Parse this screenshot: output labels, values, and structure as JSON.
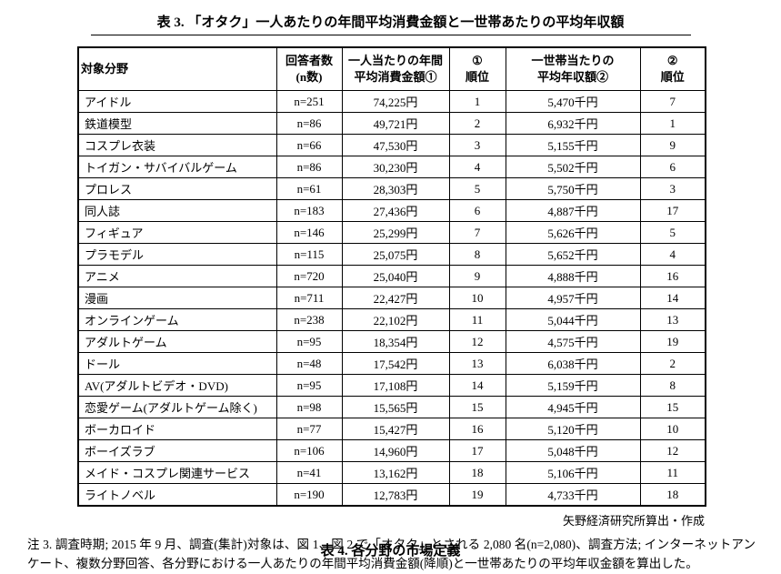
{
  "title": "表 3. 「オタク」一人あたりの年間平均消費金額と一世帯あたりの平均年収額",
  "table": {
    "col_keys": [
      "field",
      "respondents",
      "spend",
      "rank-spend",
      "income",
      "rank-income"
    ],
    "headers": [
      "対象分野",
      "回答者数\n(n数)",
      "一人当たりの年間\n平均消費金額①",
      "①\n順位",
      "一世帯当たりの\n平均年収額②",
      "②\n順位"
    ],
    "rows": [
      [
        "アイドル",
        "n=251",
        "74,225円",
        "1",
        "5,470千円",
        "7"
      ],
      [
        "鉄道模型",
        "n=86",
        "49,721円",
        "2",
        "6,932千円",
        "1"
      ],
      [
        "コスプレ衣装",
        "n=66",
        "47,530円",
        "3",
        "5,155千円",
        "9"
      ],
      [
        "トイガン・サバイバルゲーム",
        "n=86",
        "30,230円",
        "4",
        "5,502千円",
        "6"
      ],
      [
        "プロレス",
        "n=61",
        "28,303円",
        "5",
        "5,750千円",
        "3"
      ],
      [
        "同人誌",
        "n=183",
        "27,436円",
        "6",
        "4,887千円",
        "17"
      ],
      [
        "フィギュア",
        "n=146",
        "25,299円",
        "7",
        "5,626千円",
        "5"
      ],
      [
        "プラモデル",
        "n=115",
        "25,075円",
        "8",
        "5,652千円",
        "4"
      ],
      [
        "アニメ",
        "n=720",
        "25,040円",
        "9",
        "4,888千円",
        "16"
      ],
      [
        "漫画",
        "n=711",
        "22,427円",
        "10",
        "4,957千円",
        "14"
      ],
      [
        "オンラインゲーム",
        "n=238",
        "22,102円",
        "11",
        "5,044千円",
        "13"
      ],
      [
        "アダルトゲーム",
        "n=95",
        "18,354円",
        "12",
        "4,575千円",
        "19"
      ],
      [
        "ドール",
        "n=48",
        "17,542円",
        "13",
        "6,038千円",
        "2"
      ],
      [
        "AV(アダルトビデオ・DVD)",
        "n=95",
        "17,108円",
        "14",
        "5,159千円",
        "8"
      ],
      [
        "恋愛ゲーム(アダルトゲーム除く)",
        "n=98",
        "15,565円",
        "15",
        "4,945千円",
        "15"
      ],
      [
        "ボーカロイド",
        "n=77",
        "15,427円",
        "16",
        "5,120千円",
        "10"
      ],
      [
        "ボーイズラブ",
        "n=106",
        "14,960円",
        "17",
        "5,048千円",
        "12"
      ],
      [
        "メイド・コスプレ関連サービス",
        "n=41",
        "13,162円",
        "18",
        "5,106千円",
        "11"
      ],
      [
        "ライトノベル",
        "n=190",
        "12,783円",
        "19",
        "4,733千円",
        "18"
      ]
    ]
  },
  "source": "矢野経済研究所算出・作成",
  "note": "注 3. 調査時期; 2015 年 9 月、調査(集計)対象は、図 1、図 2 で「オタク」とされる 2,080 名(n=2,080)、調査方法; インターネットアンケート、複数分野回答、各分野における一人あたりの年間平均消費金額(降順)と一世帯あたりの平均年収金額を算出した。",
  "next_table_title": "表 4. 各分野の市場定義"
}
